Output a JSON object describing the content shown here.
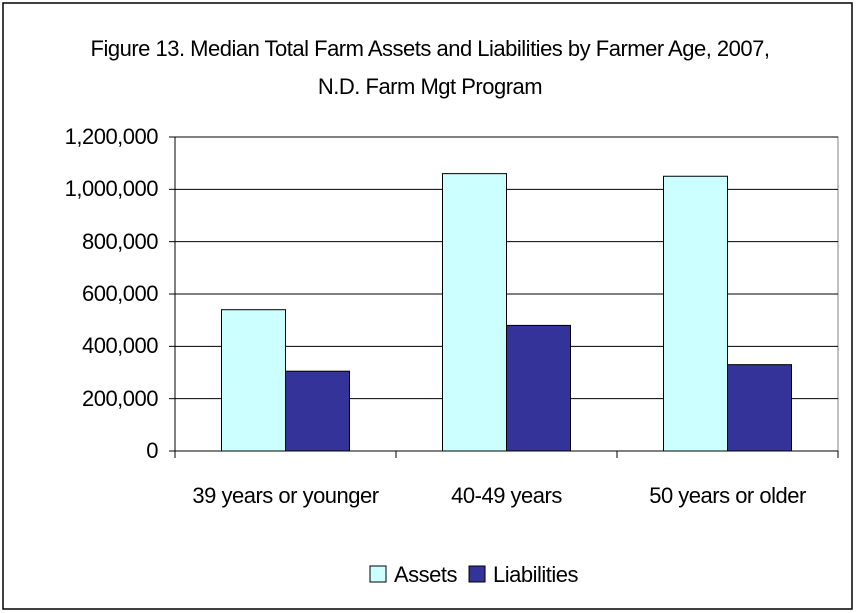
{
  "chart_data": {
    "type": "bar",
    "title": "Figure 13. Median Total Farm Assets and Liabilities by Farmer Age, 2007, N.D. Farm Mgt Program",
    "categories": [
      "39 years or younger",
      "40-49 years",
      "50 years or older"
    ],
    "series": [
      {
        "name": "Assets",
        "color": "#ccffff",
        "values": [
          540000,
          1060000,
          1050000
        ]
      },
      {
        "name": "Liabilities",
        "color": "#333399",
        "values": [
          305000,
          480000,
          330000
        ]
      }
    ],
    "ylim": [
      0,
      1200000
    ],
    "yticks": [
      0,
      {
        "value": 200000,
        "label": "200,000"
      },
      {
        "value": 400000,
        "label": "400,000"
      },
      {
        "value": 600000,
        "label": "600,000"
      },
      {
        "value": 800000,
        "label": "800,000"
      },
      {
        "value": 1000000,
        "label": "1,000,000"
      },
      {
        "value": 1200000,
        "label": "1,200,000"
      }
    ],
    "grid": true,
    "legend": "bottom"
  }
}
